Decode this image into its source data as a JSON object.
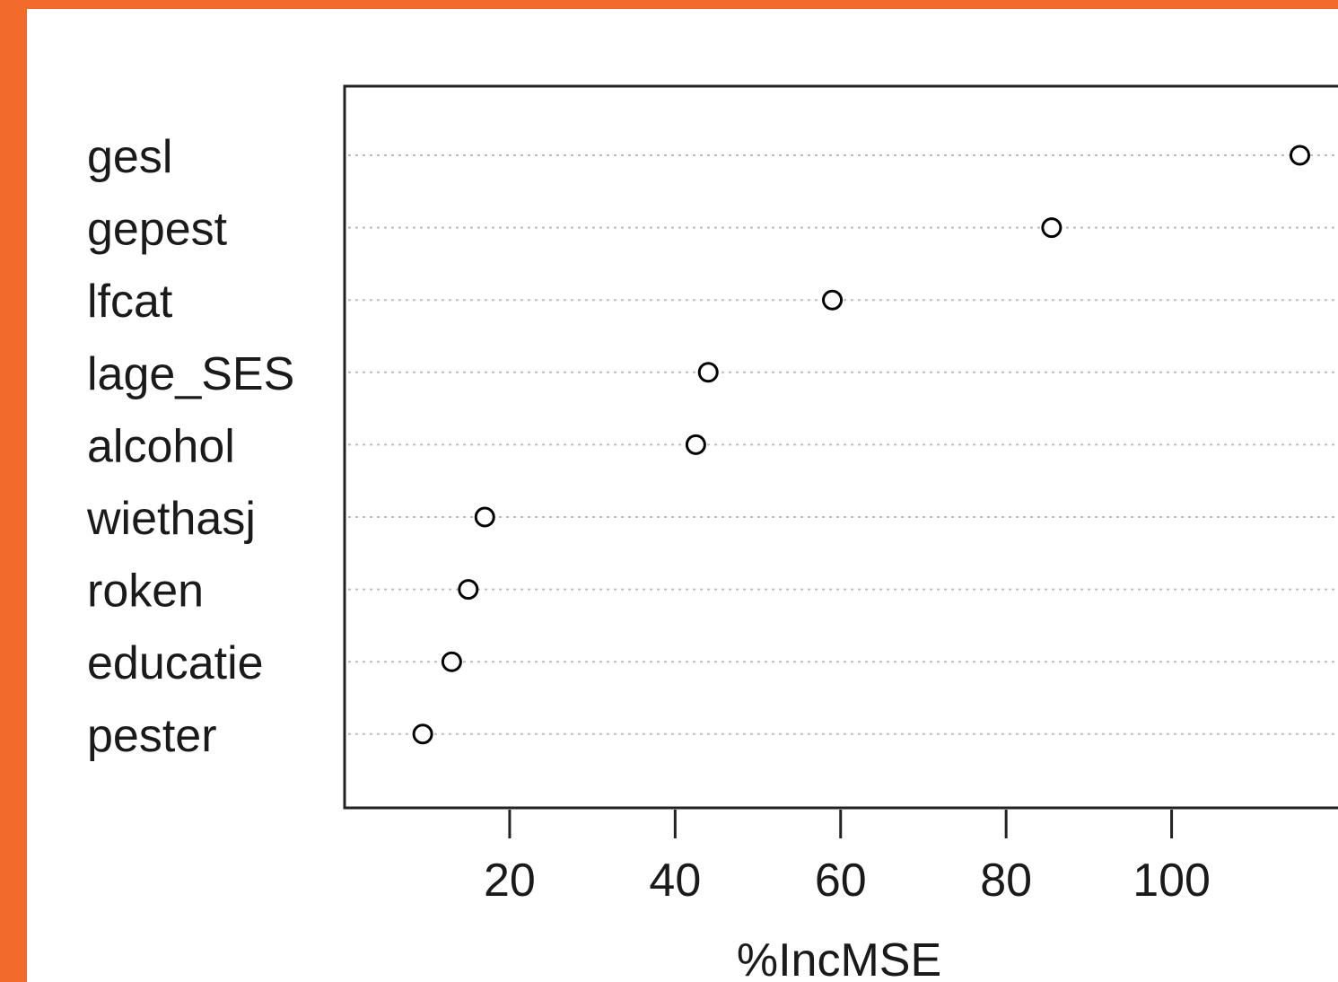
{
  "chart_data": {
    "type": "scatter",
    "subtype": "dotchart",
    "xlabel": "%IncMSE",
    "categories": [
      "gesl",
      "gepest",
      "lfcat",
      "lage_SES",
      "alcohol",
      "wiethasj",
      "roken",
      "educatie",
      "pester"
    ],
    "values": [
      115.5,
      85.5,
      59,
      44,
      42.5,
      17,
      15,
      13,
      9.5
    ],
    "xticks": [
      20,
      40,
      60,
      80,
      100
    ],
    "xlim": [
      4.5,
      120
    ],
    "grid": "dotted horizontal lines",
    "point_style": "open circle",
    "colors": {
      "frame": "#F26A2C",
      "background": "#FFFFFF",
      "points": "#000000",
      "grid": "#BBBBBB"
    }
  }
}
